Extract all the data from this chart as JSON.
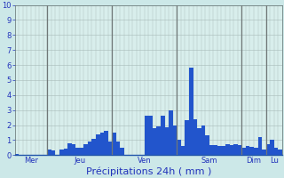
{
  "title": "Précipitations 24h ( mm )",
  "fig_bg": "#cce8e8",
  "plot_bg": "#d8eeec",
  "bar_color": "#2255cc",
  "ylim": [
    0,
    10
  ],
  "yticks": [
    0,
    1,
    2,
    3,
    4,
    5,
    6,
    7,
    8,
    9,
    10
  ],
  "day_labels": [
    "Mer",
    "Jeu",
    "Ven",
    "Sam",
    "Dim",
    "Lu"
  ],
  "day_starts": [
    0,
    8,
    24,
    40,
    56,
    62
  ],
  "n_bars": 66,
  "values": [
    0.1,
    0.0,
    0.0,
    0.0,
    0.0,
    0.0,
    0.0,
    0.0,
    0.35,
    0.3,
    0.0,
    0.4,
    0.45,
    0.8,
    0.7,
    0.5,
    0.5,
    0.7,
    0.9,
    1.1,
    1.4,
    1.5,
    1.6,
    0.9,
    1.5,
    0.9,
    0.5,
    0.0,
    0.0,
    0.0,
    0.0,
    0.0,
    2.6,
    2.6,
    1.8,
    1.9,
    2.6,
    1.85,
    3.0,
    2.0,
    1.0,
    0.6,
    2.3,
    5.8,
    2.4,
    1.8,
    2.0,
    1.3,
    0.65,
    0.65,
    0.6,
    0.6,
    0.7,
    0.65,
    0.7,
    0.65,
    0.5,
    0.6,
    0.55,
    0.5,
    1.2,
    0.4,
    0.7,
    1.0,
    0.5,
    0.4
  ],
  "h_grid_color": "#a8bab8",
  "v_grid_color": "#a8bab8",
  "sep_color": "#707878",
  "tick_fontsize": 6,
  "xlabel_fontsize": 8,
  "tick_color": "#2233bb",
  "xlabel_color": "#2233bb"
}
